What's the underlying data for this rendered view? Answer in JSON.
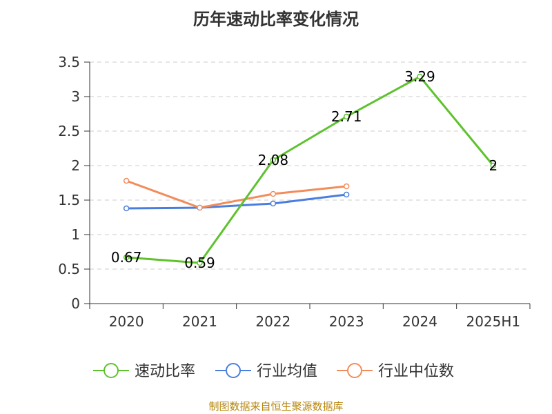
{
  "chart_data": {
    "type": "line",
    "title": "历年速动比率变化情况",
    "categories": [
      "2020",
      "2021",
      "2022",
      "2023",
      "2024",
      "2025H1"
    ],
    "ylim": [
      0,
      3.5
    ],
    "yticks": [
      "0",
      "0.5",
      "1",
      "1.5",
      "2",
      "2.5",
      "3",
      "3.5"
    ],
    "grid": true,
    "legend_position": "bottom",
    "series": [
      {
        "name": "速动比率",
        "color": "#5ec22e",
        "values": [
          0.67,
          0.59,
          2.08,
          2.71,
          3.29,
          2
        ],
        "labels": [
          "0.67",
          "0.59",
          "2.08",
          "2.71",
          "3.29",
          "2"
        ]
      },
      {
        "name": "行业均值",
        "color": "#4a7ede",
        "values": [
          1.38,
          1.39,
          1.45,
          1.58,
          null,
          null
        ]
      },
      {
        "name": "行业中位数",
        "color": "#f28c5a",
        "values": [
          1.78,
          1.39,
          1.59,
          1.7,
          null,
          null
        ]
      }
    ]
  },
  "source": "制图数据来自恒生聚源数据库"
}
